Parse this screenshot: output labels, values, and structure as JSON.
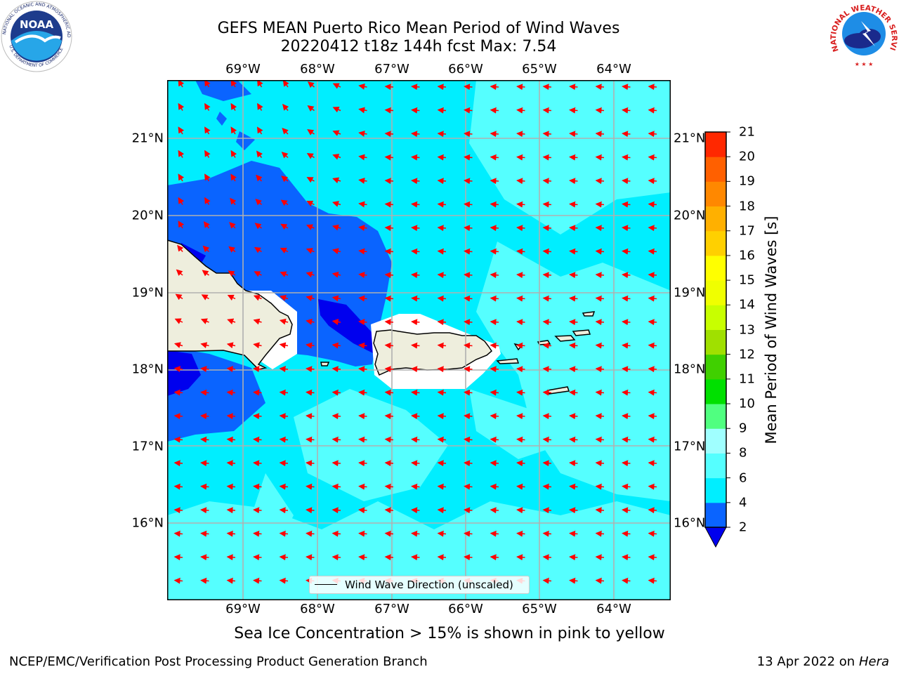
{
  "header": {
    "title_line1": "GEFS MEAN Puerto Rico Mean Period of Wind Waves",
    "title_line2": "20220412 t18z 144h fcst   Max: 7.54"
  },
  "map": {
    "lon_ticks": [
      "69°W",
      "68°W",
      "67°W",
      "66°W",
      "65°W",
      "64°W"
    ],
    "lat_ticks": [
      "21°N",
      "20°N",
      "19°N",
      "18°N",
      "17°N",
      "16°N"
    ],
    "lon_range": [
      -70.0,
      -63.25
    ],
    "lat_range": [
      15.0,
      21.75
    ],
    "arrow_color": "#ff0000",
    "wave_direction": "westward"
  },
  "colorbar": {
    "label": "Mean Period of Wind Waves [s]",
    "ticks": [
      "21",
      "20",
      "19",
      "18",
      "17",
      "16",
      "15",
      "14",
      "13",
      "12",
      "11",
      "10",
      "9",
      "8",
      "6",
      "4",
      "2"
    ],
    "levels": [
      2,
      4,
      6,
      8,
      9,
      10,
      11,
      12,
      13,
      14,
      15,
      16,
      17,
      18,
      19,
      20,
      21
    ],
    "colors": [
      "#0a64ff",
      "#00eeff",
      "#55ffff",
      "#a0ffff",
      "#50ff80",
      "#00e000",
      "#40d000",
      "#a0e000",
      "#c8ff00",
      "#f0ff00",
      "#ffff00",
      "#ffd000",
      "#ffb000",
      "#ff8800",
      "#ff6000",
      "#ff2800"
    ],
    "under_color": "#0000ee",
    "top_color": "#ff0000"
  },
  "legend": {
    "label": "Wind Wave Direction (unscaled)"
  },
  "subtitle": "Sea Ice Concentration > 15% is shown in pink to yellow",
  "footer": {
    "left": "NCEP/EMC/Verification Post Processing Product Generation Branch",
    "right_prefix": "13 Apr 2022 on ",
    "right_italic": "Hera"
  },
  "logos": {
    "noaa_text": "NOAA",
    "noaa_ring": "NATIONAL OCEANIC AND ATMOSPHERIC ADMINISTRATION",
    "noaa_ring_bottom": "U.S. DEPARTMENT OF COMMERCE",
    "nws_ring": "NATIONAL WEATHER SERVICE"
  }
}
